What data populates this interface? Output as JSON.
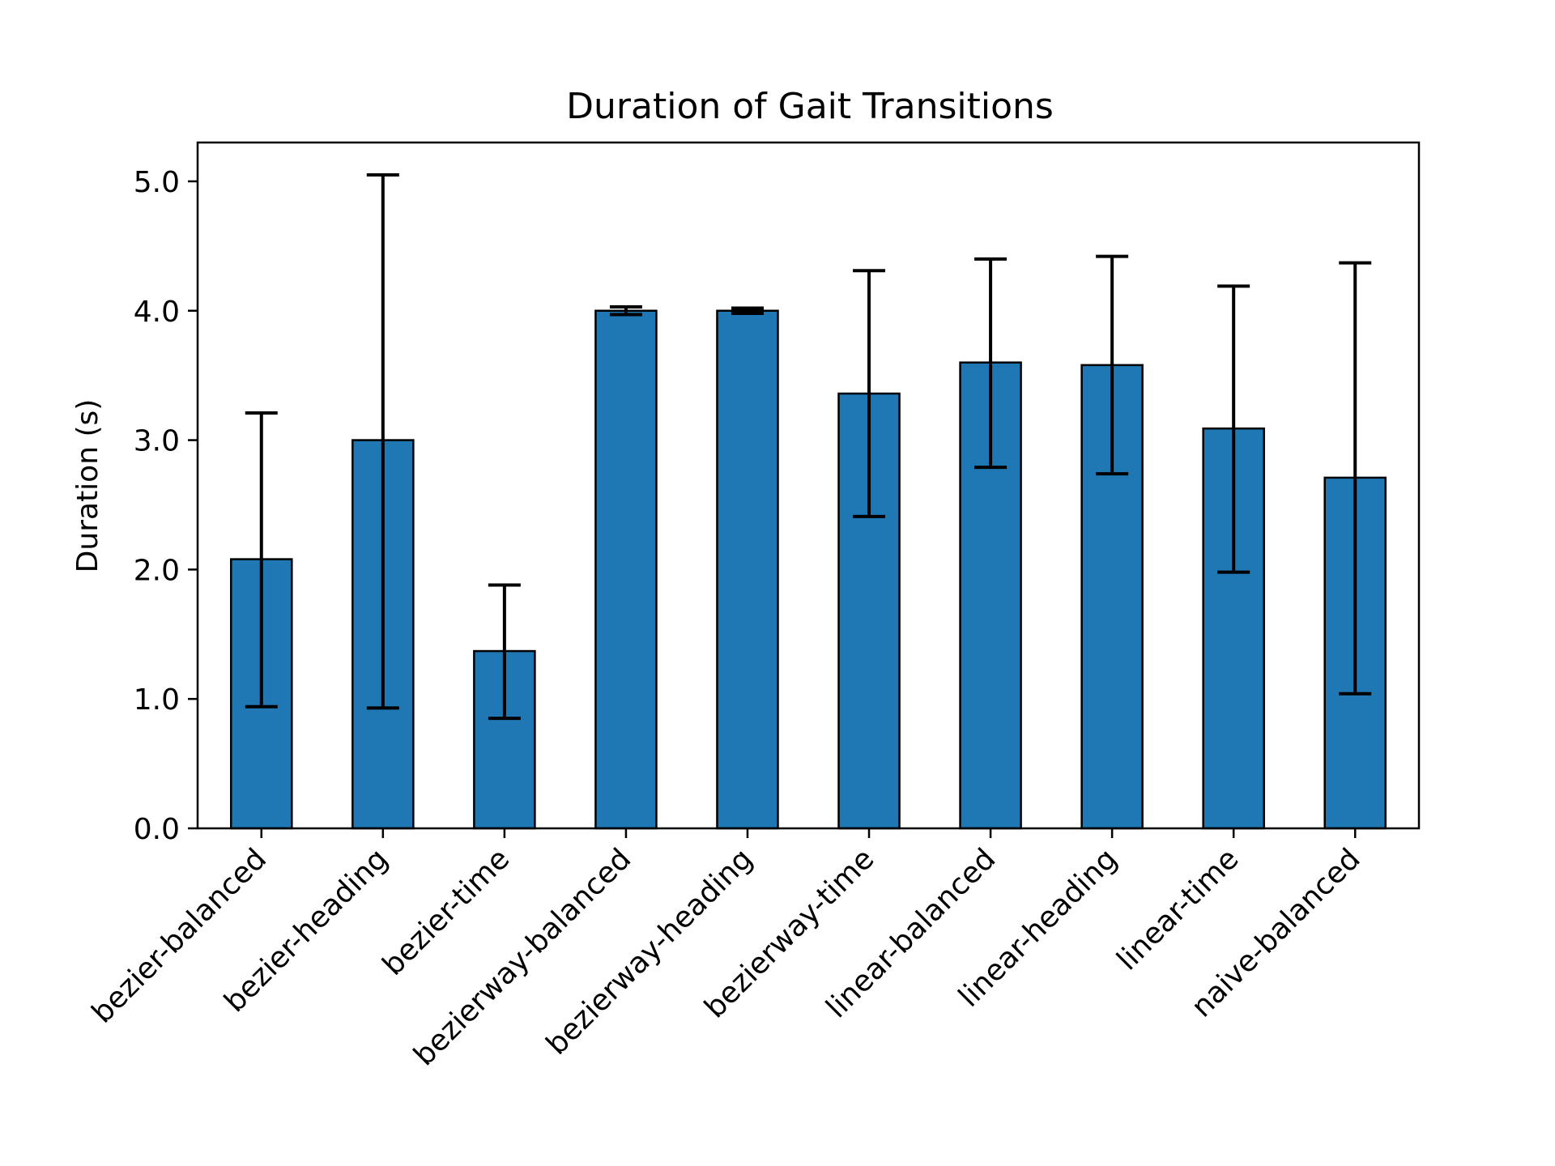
{
  "chart_data": {
    "type": "bar",
    "title": "Duration of Gait Transitions",
    "xlabel": "",
    "ylabel": "Duration (s)",
    "ylim": [
      0,
      5.3
    ],
    "yticks": [
      0.0,
      1.0,
      2.0,
      3.0,
      4.0,
      5.0
    ],
    "ytick_labels": [
      "0.0",
      "1.0",
      "2.0",
      "3.0",
      "4.0",
      "5.0"
    ],
    "categories": [
      "bezier-balanced",
      "bezier-heading",
      "bezier-time",
      "bezierway-balanced",
      "bezierway-heading",
      "bezierway-time",
      "linear-balanced",
      "linear-heading",
      "linear-time",
      "naive-balanced"
    ],
    "values": [
      2.08,
      3.0,
      1.37,
      4.0,
      4.0,
      3.36,
      3.6,
      3.58,
      3.09,
      2.71
    ],
    "error_low": [
      0.94,
      0.93,
      0.85,
      3.97,
      3.98,
      2.41,
      2.79,
      2.74,
      1.98,
      1.04
    ],
    "error_high": [
      3.21,
      5.05,
      1.88,
      4.03,
      4.02,
      4.31,
      4.4,
      4.42,
      4.19,
      4.37
    ],
    "bar_color": "#1f77b4",
    "edge_color": "#000000",
    "grid": false,
    "legend": "none"
  }
}
